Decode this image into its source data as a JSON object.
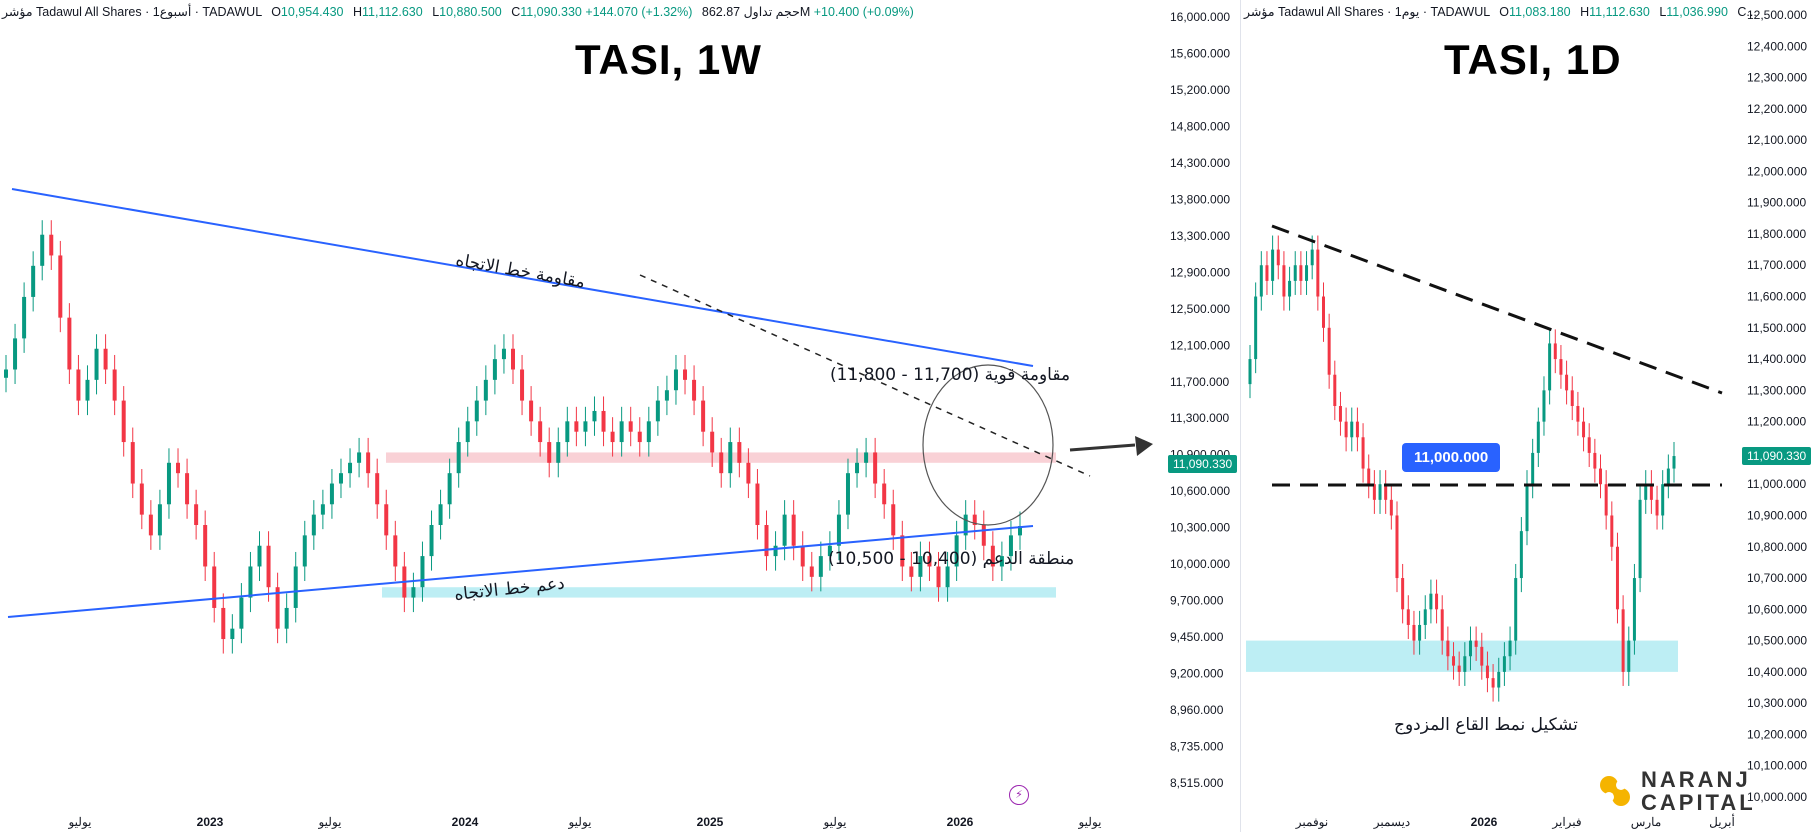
{
  "left_chart": {
    "legend": {
      "prefix": "مؤشر Tadawul All Shares · أسبوع1 · TADAWUL",
      "o_label": "O",
      "o": "10,954.430",
      "h_label": "H",
      "h": "11,112.630",
      "l_label": "L",
      "l": "10,880.500",
      "c_label": "C",
      "c": "11,090.330",
      "change": "+144.070 (+1.32%)",
      "volume": "حجم تداول 862.87M",
      "vol_change": "+10.400 (+0.09%)"
    },
    "title": "TASI, 1W",
    "price_tag": "11,090.330",
    "annotations": {
      "resistance_trend": "مقاومة خط الاتجاه",
      "support_trend": "دعم خط الاتجاه",
      "strong_resistance": "مقاومة قوية (11,700 - 11,800)",
      "support_zone": "منطقة الدعم (10,400 - 10,500)"
    }
  },
  "right_chart": {
    "legend": {
      "prefix": "مؤشر Tadawul All Shares · يوم1 · TADAWUL",
      "o_label": "O",
      "o": "11,083.180",
      "h_label": "H",
      "h": "11,112.630",
      "l_label": "L",
      "l": "11,036.990",
      "c_label": "C..."
    },
    "title": "TASI, 1D",
    "price_tag": "11,090.330",
    "callout": "11,000.000",
    "annotation": "تشكيل نمط القاع المزدوج"
  },
  "logo": {
    "line1": "NARANJ",
    "line2": "CAPITAL"
  },
  "colors": {
    "up": "#089981",
    "down": "#f23645",
    "trend": "#2962ff",
    "resistance_zone": "#f8c9cf",
    "support_zone": "#b2ebf2"
  },
  "chart_data": [
    {
      "type": "candlestick",
      "title": "TASI, 1W",
      "y_ticks": [
        "16,000.000",
        "15,600.000",
        "15,200.000",
        "14,800.000",
        "14,300.000",
        "13,800.000",
        "13,300.000",
        "12,900.000",
        "12,500.000",
        "12,100.000",
        "11,700.000",
        "11,300.000",
        "10,900.000",
        "10,600.000",
        "10,300.000",
        "10,000.000",
        "9,700.000",
        "9,450.000",
        "9,200.000",
        "8,960.000",
        "8,735.000",
        "8,515.000"
      ],
      "x_ticks": [
        "يوليو",
        "2023",
        "يوليو",
        "2024",
        "يوليو",
        "2025",
        "يوليو",
        "2026",
        "يوليو"
      ],
      "closes": [
        12600,
        12900,
        13300,
        13600,
        13900,
        13700,
        13100,
        12600,
        12300,
        12500,
        12800,
        12600,
        12300,
        11900,
        11500,
        11200,
        11000,
        11300,
        11700,
        11600,
        11300,
        11100,
        10700,
        10300,
        10000,
        10100,
        10400,
        10700,
        10900,
        10500,
        10100,
        10300,
        10700,
        11000,
        11200,
        11300,
        11500,
        11600,
        11700,
        11800,
        11600,
        11300,
        11000,
        10700,
        10400,
        10500,
        10800,
        11100,
        11300,
        11600,
        11900,
        12100,
        12300,
        12500,
        12700,
        12800,
        12600,
        12300,
        12100,
        11900,
        11700,
        11900,
        12100,
        12000,
        12100,
        12200,
        12000,
        11900,
        12100,
        12000,
        11900,
        12100,
        12300,
        12400,
        12600,
        12500,
        12300,
        12000,
        11800,
        11600,
        11900,
        11700,
        11500,
        11100,
        10800,
        10900,
        11200,
        10900,
        10700,
        10600,
        10800,
        10900,
        11200,
        11600,
        11700,
        11800,
        11500,
        11300,
        11000,
        10700,
        10600,
        10800,
        10700,
        10500,
        10700,
        11000,
        11200,
        11100,
        10900,
        10700,
        10800,
        11000,
        11090
      ],
      "ylim": [
        8515,
        16000
      ]
    },
    {
      "type": "candlestick",
      "title": "TASI, 1D",
      "y_ticks": [
        "12,500.000",
        "12,400.000",
        "12,300.000",
        "12,200.000",
        "12,100.000",
        "12,000.000",
        "11,900.000",
        "11,800.000",
        "11,700.000",
        "11,600.000",
        "11,500.000",
        "11,400.000",
        "11,300.000",
        "11,200.000",
        "11,100.000",
        "11,000.000",
        "10,900.000",
        "10,800.000",
        "10,700.000",
        "10,600.000",
        "10,500.000",
        "10,400.000",
        "10,300.000",
        "10,200.000",
        "10,100.000",
        "10,000.000"
      ],
      "x_ticks": [
        "نوفمبر",
        "ديسمبر",
        "2026",
        "فبراير",
        "مارس",
        "أبريل"
      ],
      "closes": [
        11400,
        11600,
        11700,
        11650,
        11750,
        11700,
        11600,
        11650,
        11700,
        11650,
        11700,
        11750,
        11600,
        11500,
        11350,
        11250,
        11200,
        11150,
        11200,
        11150,
        11050,
        11000,
        10950,
        11000,
        10950,
        10900,
        10700,
        10600,
        10550,
        10500,
        10550,
        10600,
        10650,
        10600,
        10500,
        10450,
        10420,
        10400,
        10450,
        10500,
        10480,
        10420,
        10380,
        10350,
        10400,
        10450,
        10500,
        10700,
        10850,
        11000,
        11100,
        11200,
        11300,
        11450,
        11400,
        11350,
        11300,
        11250,
        11200,
        11150,
        11100,
        11050,
        11000,
        10900,
        10800,
        10600,
        10400,
        10500,
        10700,
        10950,
        11000,
        10950,
        10900,
        11000,
        11050,
        11090
      ],
      "ylim": [
        10000,
        12500
      ]
    }
  ]
}
